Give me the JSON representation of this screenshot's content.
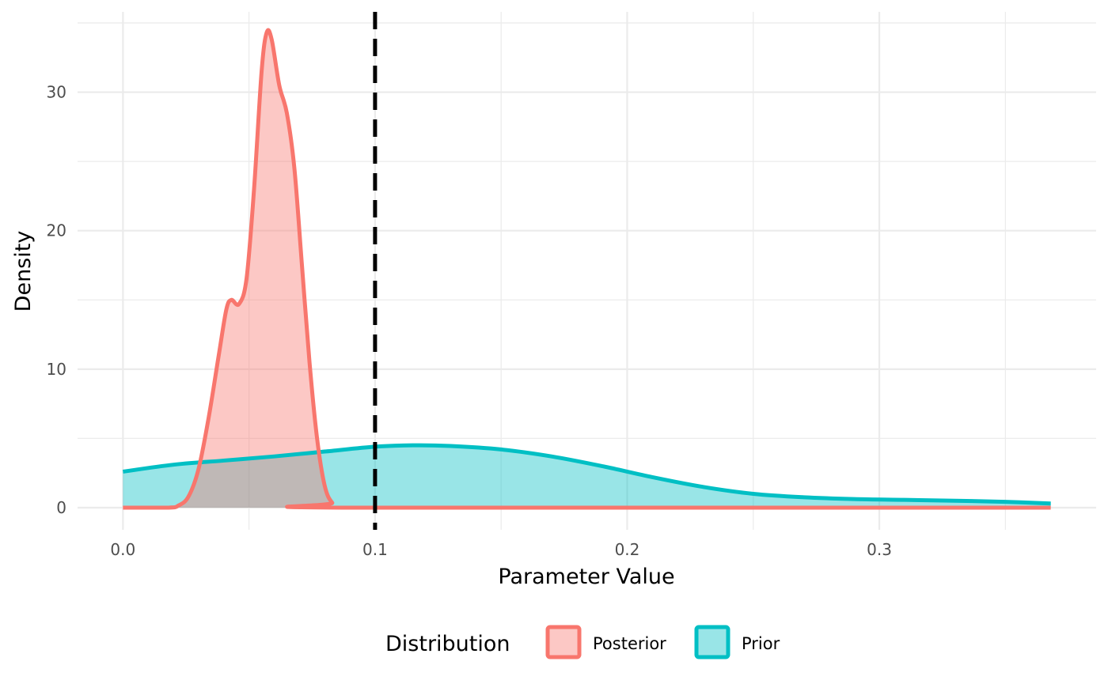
{
  "chart_data": {
    "type": "area",
    "xlabel": "Parameter Value",
    "ylabel": "Density",
    "xlim": [
      -0.018,
      0.386
    ],
    "ylim": [
      -1.6,
      35.8
    ],
    "x_ticks": [
      0.0,
      0.1,
      0.2,
      0.3
    ],
    "x_tick_labels": [
      "0.0",
      "0.1",
      "0.2",
      "0.3"
    ],
    "x_minor_ticks": [
      0.05,
      0.15,
      0.25,
      0.35
    ],
    "y_ticks": [
      0,
      10,
      20,
      30
    ],
    "y_tick_labels": [
      "0",
      "10",
      "20",
      "30"
    ],
    "y_minor_ticks": [
      5,
      15,
      25,
      35
    ],
    "grid": true,
    "reference_line": {
      "x": 0.1,
      "style": "dashed",
      "color": "#000000"
    },
    "legend": {
      "title": "Distribution",
      "position": "bottom"
    },
    "series": [
      {
        "name": "Prior",
        "color": "#00BFC4",
        "points": [
          [
            0.0,
            2.6
          ],
          [
            0.02,
            3.1
          ],
          [
            0.04,
            3.4
          ],
          [
            0.06,
            3.7
          ],
          [
            0.08,
            4.05
          ],
          [
            0.1,
            4.4
          ],
          [
            0.115,
            4.5
          ],
          [
            0.13,
            4.45
          ],
          [
            0.15,
            4.2
          ],
          [
            0.17,
            3.7
          ],
          [
            0.19,
            3.0
          ],
          [
            0.21,
            2.2
          ],
          [
            0.23,
            1.5
          ],
          [
            0.25,
            1.0
          ],
          [
            0.27,
            0.75
          ],
          [
            0.29,
            0.62
          ],
          [
            0.31,
            0.56
          ],
          [
            0.33,
            0.5
          ],
          [
            0.35,
            0.42
          ],
          [
            0.368,
            0.3
          ]
        ]
      },
      {
        "name": "Posterior",
        "color": "#F8766D",
        "points": [
          [
            0.0,
            0.0
          ],
          [
            0.018,
            0.0
          ],
          [
            0.022,
            0.15
          ],
          [
            0.026,
            0.8
          ],
          [
            0.03,
            2.8
          ],
          [
            0.034,
            6.5
          ],
          [
            0.038,
            11.0
          ],
          [
            0.041,
            14.3
          ],
          [
            0.043,
            15.0
          ],
          [
            0.046,
            14.7
          ],
          [
            0.049,
            16.5
          ],
          [
            0.052,
            23.0
          ],
          [
            0.055,
            31.5
          ],
          [
            0.057,
            34.3
          ],
          [
            0.059,
            33.8
          ],
          [
            0.062,
            30.5
          ],
          [
            0.065,
            28.5
          ],
          [
            0.068,
            24.5
          ],
          [
            0.071,
            17.5
          ],
          [
            0.074,
            10.5
          ],
          [
            0.077,
            5.0
          ],
          [
            0.08,
            1.6
          ],
          [
            0.083,
            0.35
          ],
          [
            0.087,
            0.0
          ],
          [
            0.368,
            0.0
          ]
        ]
      }
    ]
  }
}
